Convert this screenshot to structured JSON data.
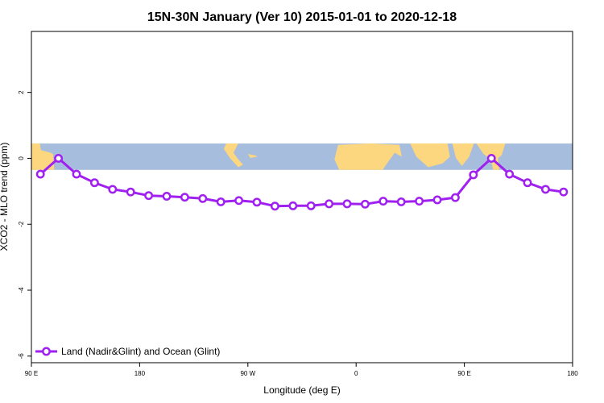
{
  "chart_data": {
    "type": "line",
    "title": "15N-30N January (Ver 10)   2015-01-01 to 2020-12-18",
    "xlabel": "Longitude (deg E)",
    "ylabel": "XCO2 - MLO trend (ppm)",
    "xlim": [
      90,
      540
    ],
    "ylim": [
      -6.2,
      3.85
    ],
    "x_ticks": [
      {
        "value": 90,
        "label": "90 E"
      },
      {
        "value": 180,
        "label": "180"
      },
      {
        "value": 270,
        "label": "90 W"
      },
      {
        "value": 360,
        "label": "0"
      },
      {
        "value": 450,
        "label": "90 E"
      },
      {
        "value": 540,
        "label": "180"
      }
    ],
    "y_ticks": [
      {
        "value": 2,
        "label": "2"
      },
      {
        "value": 0,
        "label": "0"
      },
      {
        "value": -2,
        "label": "-2"
      },
      {
        "value": -4,
        "label": "-4"
      },
      {
        "value": -6,
        "label": "-6"
      }
    ],
    "map_band": {
      "ymin": -0.35,
      "ymax": 0.45,
      "ocean_color": "#a7bddd",
      "land_color": "#fcd77f"
    },
    "legend": "Land (Nadir&Glint) and Ocean (Glint)",
    "legend_position": "bottom-left",
    "series": [
      {
        "name": "Land (Nadir&Glint) and Ocean (Glint)",
        "color": "#a020f0",
        "x": [
          97.5,
          112.5,
          127.5,
          142.5,
          157.5,
          172.5,
          187.5,
          202.5,
          217.5,
          232.5,
          247.5,
          262.5,
          277.5,
          292.5,
          307.5,
          322.5,
          337.5,
          352.5,
          367.5,
          382.5,
          397.5,
          412.5,
          427.5,
          442.5,
          457.5,
          472.5,
          487.5,
          502.5,
          517.5,
          532.5
        ],
        "values": [
          -0.48,
          0.0,
          -0.48,
          -0.74,
          -0.94,
          -1.02,
          -1.13,
          -1.15,
          -1.18,
          -1.22,
          -1.32,
          -1.28,
          -1.33,
          -1.45,
          -1.44,
          -1.44,
          -1.38,
          -1.38,
          -1.39,
          -1.3,
          -1.32,
          -1.3,
          -1.26,
          -1.19,
          -0.5,
          0.0,
          -0.48,
          -0.74,
          -0.94,
          -1.02
        ]
      }
    ]
  }
}
